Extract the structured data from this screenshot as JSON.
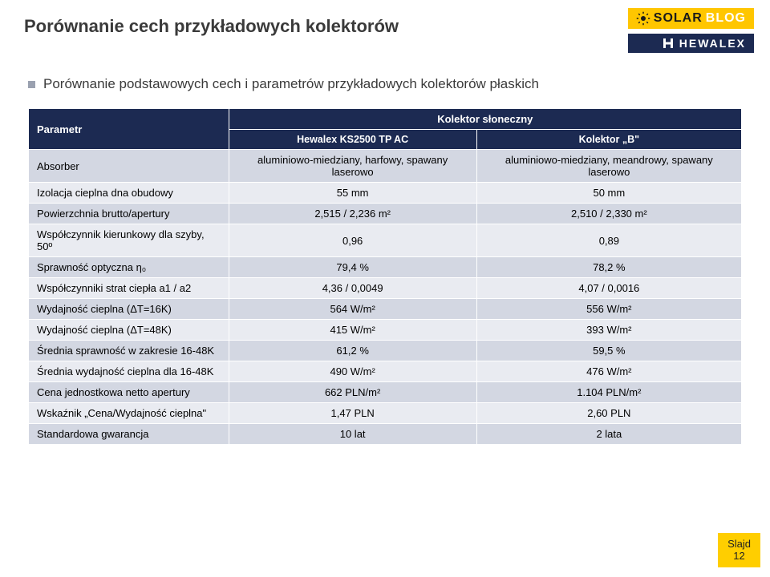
{
  "page": {
    "title": "Porównanie cech przykładowych kolektorów",
    "subtitle": "Porównanie podstawowych cech i parametrów przykładowych kolektorów płaskich"
  },
  "logo": {
    "solar": "SOLAR",
    "blog": "BLOG",
    "hewalex": "HEWALEX",
    "sun_color": "#1a1a1a",
    "solarblog_bg": "#ffc600",
    "hewalex_bg": "#1c2a52"
  },
  "table": {
    "header": {
      "param_label": "Parametr",
      "top_label": "Kolektor słoneczny",
      "col1": "Hewalex KS2500 TP AC",
      "col2": "Kolektor „B\""
    },
    "colors": {
      "header_bg": "#1c2a52",
      "header_text": "#ffffff",
      "row_odd_bg": "#d3d7e2",
      "row_even_bg": "#e9ebf1"
    },
    "rows": [
      {
        "label": "Absorber",
        "c1": "aluminiowo-miedziany, harfowy, spawany laserowo",
        "c2": "aluminiowo-miedziany, meandrowy, spawany laserowo"
      },
      {
        "label": "Izolacja cieplna dna obudowy",
        "c1": "55 mm",
        "c2": "50 mm"
      },
      {
        "label": "Powierzchnia brutto/apertury",
        "c1": "2,515 / 2,236 m²",
        "c2": "2,510 / 2,330 m²"
      },
      {
        "label": "Współczynnik kierunkowy dla szyby, 50º",
        "c1": "0,96",
        "c2": "0,89"
      },
      {
        "label": "Sprawność optyczna η₀",
        "c1": "79,4 %",
        "c2": "78,2 %"
      },
      {
        "label": "Współczynniki strat ciepła a1 / a2",
        "c1": "4,36 / 0,0049",
        "c2": "4,07 / 0,0016"
      },
      {
        "label": "Wydajność cieplna (ΔT=16K)",
        "c1": "564 W/m²",
        "c2": "556 W/m²"
      },
      {
        "label": "Wydajność cieplna (ΔT=48K)",
        "c1": "415 W/m²",
        "c2": "393 W/m²"
      },
      {
        "label": "Średnia sprawność w zakresie 16-48K",
        "c1": "61,2 %",
        "c2": "59,5 %"
      },
      {
        "label": "Średnia wydajność cieplna dla 16-48K",
        "c1": "490 W/m²",
        "c2": "476 W/m²"
      },
      {
        "label": "Cena jednostkowa netto apertury",
        "c1": "662 PLN/m²",
        "c2": "1.104 PLN/m²"
      },
      {
        "label": "Wskaźnik „Cena/Wydajność cieplna\"",
        "c1": "1,47 PLN",
        "c2": "2,60 PLN"
      },
      {
        "label": "Standardowa gwarancja",
        "c1": "10 lat",
        "c2": "2 lata"
      }
    ]
  },
  "slide_badge": {
    "label": "Slajd",
    "number": "12",
    "bg": "#ffce00"
  }
}
